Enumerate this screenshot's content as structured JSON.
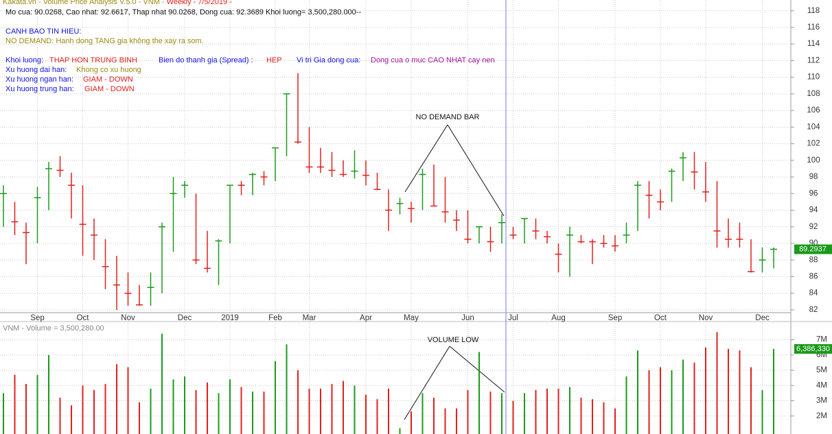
{
  "header": {
    "line1a": "Kakata.vn - Volume Price Analysis V.5.0 - VNM - ",
    "line1b": "Weekly  - 7/5/2019 -",
    "line2": "Mo cua: 90.0268, Cao nhat: 92.6617, Thap nhat 90.0268, Dong cua: 92.3689  Khoi luong= 3,500,280.000--",
    "warn_title": "CANH BAO TIN HIEU:",
    "warn_text": "NO DEMAND: Hanh dong TANG gia không the xay ra som.",
    "vol_label": "Khoi luong:",
    "vol_value": "THAP HON TRUNG BINH",
    "spread_label": "Bien do thanh gia (Spread) :",
    "spread_value": "HEP",
    "close_pos_label": "Vi tri Gia dong cua:",
    "close_pos_value": "Dong cua o muc CAO NHAT cay nen",
    "long_trend_label": "Xu huong dai han:",
    "long_trend_value": "Khong co xu huong",
    "short_trend_label": "Xu huong ngan han:",
    "short_trend_value": "GIAM - DOWN",
    "mid_trend_label": "Xu huong trung han:",
    "mid_trend_value": "GIAM - DOWN"
  },
  "chart_data": [
    {
      "type": "ohlc",
      "annotation": "NO DEMAND BAR",
      "up_color": "#1a9a1a",
      "down_color": "#e0201c",
      "categories": [
        null,
        null,
        null,
        "Sep",
        null,
        null,
        null,
        "Oct",
        null,
        null,
        null,
        "Nov",
        null,
        null,
        null,
        null,
        "Dec",
        null,
        null,
        null,
        "2019",
        null,
        null,
        null,
        "Feb",
        null,
        null,
        "Mar",
        null,
        null,
        null,
        null,
        "Apr",
        null,
        null,
        null,
        "May",
        null,
        null,
        null,
        null,
        "Jun",
        null,
        null,
        null,
        "Jul",
        null,
        null,
        null,
        "Aug",
        null,
        null,
        null,
        null,
        "Sep",
        null,
        null,
        null,
        "Oct",
        null,
        null,
        null,
        "Nov",
        null,
        null,
        null,
        null,
        "Dec",
        null
      ],
      "high": [
        97,
        95,
        92.5,
        96.8,
        99.8,
        100.5,
        98.5,
        97,
        93,
        90.5,
        88.5,
        86.5,
        85,
        86.5,
        92.5,
        98,
        97.5,
        96,
        91.5,
        90.5,
        97,
        97.5,
        98.5,
        98.7,
        101.5,
        108,
        110.5,
        104,
        101.5,
        101,
        100,
        101.2,
        100,
        98.5,
        96.5,
        95.5,
        95,
        99,
        99.5,
        98,
        94,
        94,
        92,
        92,
        93.5,
        92,
        93,
        93,
        91.5,
        90,
        92,
        91,
        90.5,
        91,
        91,
        92.5,
        97.5,
        97.5,
        96.5,
        99,
        101,
        101,
        99.8,
        97.5,
        93,
        92.5,
        90.5,
        89.5,
        89.5
      ],
      "low": [
        92,
        91,
        87.5,
        90,
        94,
        98,
        93,
        88.5,
        88,
        84.5,
        82,
        82.5,
        82.5,
        82.5,
        84,
        89,
        95.5,
        87.5,
        86.5,
        85,
        90,
        95.8,
        95.8,
        97,
        97.5,
        100.5,
        102,
        98.5,
        98.5,
        98,
        98,
        97.8,
        97,
        96.5,
        91.5,
        93.5,
        92.5,
        94,
        94.5,
        92.5,
        91.5,
        90,
        90,
        89,
        90,
        90.5,
        90,
        90.5,
        90,
        86.5,
        86,
        90,
        87.5,
        89.5,
        89,
        90,
        91.5,
        93,
        94,
        95,
        97.5,
        96.5,
        95,
        89.5,
        89.5,
        89.5,
        86.5,
        86.5,
        87
      ],
      "close": [
        96,
        92.6,
        91.3,
        95.5,
        99,
        98.8,
        97,
        92.3,
        91,
        87.2,
        85,
        84,
        82.6,
        84.7,
        92,
        96,
        97,
        88,
        87,
        90.3,
        97,
        97,
        98.3,
        98,
        101.5,
        108,
        102.2,
        99.2,
        99.2,
        98.8,
        98.3,
        98.7,
        98.2,
        96.5,
        94,
        94.8,
        94.2,
        98.3,
        94.5,
        93.8,
        92.8,
        90.5,
        92,
        90.2,
        92.5,
        91,
        93,
        91.5,
        90.8,
        88.7,
        91,
        90.2,
        90.2,
        90,
        89.7,
        91,
        97,
        95.8,
        95,
        98.7,
        100.3,
        98.6,
        96.2,
        91.5,
        90.5,
        90.5,
        86.6,
        88,
        89.2937
      ],
      "last_label": "89.2937",
      "ylim": [
        81.5,
        119.3
      ],
      "yticks": [
        82,
        84,
        86,
        88,
        90,
        92,
        94,
        96,
        98,
        100,
        102,
        104,
        106,
        108,
        110,
        112,
        114,
        116,
        118
      ],
      "grid": true
    },
    {
      "type": "bar",
      "title": "VNM - Volume = 3,500,280.00",
      "annotation": "VOLUME LOW",
      "values": [
        3.5,
        4.7,
        4.1,
        4.7,
        6.0,
        3.2,
        2.7,
        4.0,
        3.7,
        4.1,
        5.4,
        5.2,
        2.9,
        3.8,
        7.4,
        4.4,
        4.6,
        3.7,
        4.2,
        3.5,
        4.4,
        3.9,
        3.6,
        3.6,
        5.6,
        6.7,
        5.0,
        3.8,
        3.8,
        4.1,
        4.3,
        4.0,
        3.4,
        3.1,
        3.8,
        1.2,
        2.3,
        3.5,
        3.2,
        2.5,
        2.5,
        3.7,
        6.2,
        3.6,
        3.5,
        3.0,
        3.5,
        3.7,
        3.8,
        3.8,
        3.9,
        3.2,
        3.1,
        2.9,
        2.5,
        4.6,
        6.3,
        5.0,
        5.2,
        5.0,
        5.7,
        5.5,
        6.5,
        7.5,
        6.4,
        6.3,
        5.2,
        3.7,
        6.4
      ],
      "last_label": "6,386,330",
      "ylim": [
        0.82,
        8.15
      ],
      "yticks": [
        {
          "value": 2,
          "label": "2M"
        },
        {
          "value": 3,
          "label": "3M"
        },
        {
          "value": 4,
          "label": "4M"
        },
        {
          "value": 5,
          "label": "5M"
        },
        {
          "value": 6,
          "label": "6M"
        },
        {
          "value": 7,
          "label": "7M"
        }
      ],
      "grid": true
    }
  ]
}
